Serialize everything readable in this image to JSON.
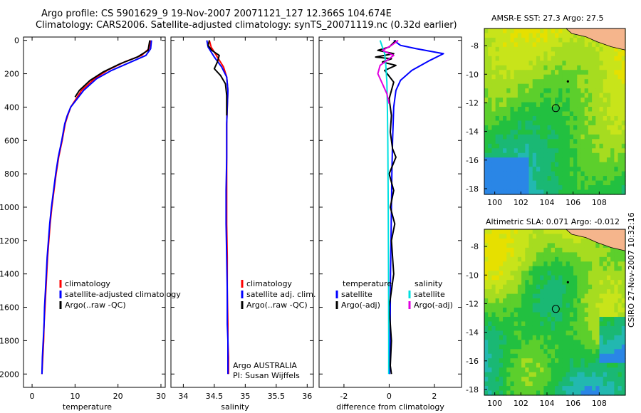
{
  "title": {
    "line1": "Argo profile: CS 5901629_9 19-Nov-2007 20071121_127 12.366S 104.674E",
    "line2": "Climatology: CARS2006. Satellite-adjusted climatology: synTS_20071119.nc (0.32d earlier)"
  },
  "colors": {
    "climatology": "#ff0000",
    "satellite": "#0000ff",
    "argo": "#000000",
    "satellite_salinity": "#00e0e0",
    "argo_salinity": "#e000e0",
    "land": "#f5b58c"
  },
  "credit": "CSIRO 27-Nov-2007 10:32:16",
  "chart_data": [
    {
      "type": "line",
      "id": "temperature",
      "xlabel": "temperature",
      "ylabel": "",
      "xlim": [
        -2,
        31
      ],
      "ylim": [
        2080,
        -20
      ],
      "xticks": [
        0,
        10,
        20,
        30
      ],
      "yticks": [
        0,
        200,
        400,
        600,
        800,
        1000,
        1200,
        1400,
        1600,
        1800,
        2000
      ],
      "series": [
        {
          "name": "climatology",
          "color": "#ff0000",
          "x": [
            27.6,
            27.2,
            25.5,
            21.5,
            17.5,
            14.5,
            11.5,
            10.0,
            9.0,
            8.3,
            7.7,
            7.0,
            6.2,
            5.6,
            5.1,
            4.6,
            4.2,
            3.9,
            3.6,
            3.4,
            3.2,
            3.0,
            2.8,
            2.7,
            2.6,
            2.5,
            2.4,
            2.3
          ],
          "y": [
            0,
            50,
            90,
            130,
            180,
            230,
            300,
            360,
            400,
            450,
            500,
            600,
            700,
            800,
            900,
            1000,
            1100,
            1200,
            1300,
            1400,
            1500,
            1600,
            1700,
            1800,
            1850,
            1900,
            1950,
            2000
          ]
        },
        {
          "name": "satellite-adjusted climatology",
          "color": "#0000ff",
          "x": [
            27.8,
            27.6,
            26.5,
            23.0,
            18.5,
            15.0,
            12.0,
            10.2,
            9.0,
            8.2,
            7.6,
            6.9,
            6.1,
            5.5,
            5.0,
            4.5,
            4.1,
            3.8,
            3.5,
            3.3,
            3.1,
            2.9,
            2.8,
            2.6,
            2.5,
            2.4,
            2.35,
            2.3
          ],
          "y": [
            0,
            50,
            90,
            130,
            180,
            230,
            300,
            360,
            400,
            450,
            500,
            600,
            700,
            800,
            900,
            1000,
            1100,
            1200,
            1300,
            1400,
            1500,
            1600,
            1700,
            1800,
            1850,
            1900,
            1950,
            2000
          ]
        },
        {
          "name": "Argo(..raw -QC)",
          "color": "#000000",
          "x": [
            27.4,
            27.0,
            24.5,
            20.5,
            16.5,
            13.5,
            11.0,
            10.0
          ],
          "y": [
            0,
            60,
            100,
            140,
            190,
            240,
            300,
            340
          ]
        }
      ],
      "legend": [
        "climatology",
        "satellite-adjusted climatology",
        "Argo(..raw -QC)"
      ]
    },
    {
      "type": "line",
      "id": "salinity",
      "xlabel": "salinity",
      "ylabel": "",
      "xlim": [
        33.8,
        36.1
      ],
      "ylim": [
        2080,
        -20
      ],
      "xticks": [
        34,
        34.5,
        35,
        35.5,
        36
      ],
      "series": [
        {
          "name": "climatology",
          "color": "#ff0000",
          "x": [
            34.42,
            34.45,
            34.55,
            34.65,
            34.7,
            34.72,
            34.71,
            34.7,
            34.7,
            34.7,
            34.7,
            34.71,
            34.71,
            34.72,
            34.72,
            34.73,
            34.73
          ],
          "y": [
            0,
            40,
            100,
            160,
            220,
            300,
            400,
            500,
            700,
            900,
            1100,
            1300,
            1500,
            1700,
            1800,
            1900,
            2000
          ]
        },
        {
          "name": "satellite adj. clim.",
          "color": "#0000ff",
          "x": [
            34.38,
            34.4,
            34.5,
            34.62,
            34.7,
            34.72,
            34.71,
            34.7,
            34.7,
            34.69,
            34.69,
            34.7,
            34.71,
            34.71,
            34.72,
            34.72,
            34.72
          ],
          "y": [
            0,
            40,
            100,
            160,
            220,
            300,
            400,
            500,
            700,
            900,
            1100,
            1300,
            1500,
            1700,
            1800,
            1900,
            2000
          ]
        },
        {
          "name": "Argo(..raw -QC)",
          "color": "#000000",
          "x": [
            34.42,
            34.4,
            34.46,
            34.58,
            34.55,
            34.5,
            34.6,
            34.68,
            34.7,
            34.7
          ],
          "y": [
            0,
            30,
            60,
            90,
            130,
            170,
            210,
            260,
            330,
            450
          ]
        }
      ],
      "legend": [
        "climatology",
        "satellite adj. clim.",
        "Argo(..raw -QC)"
      ],
      "annotation": [
        "Argo AUSTRALIA",
        "PI: Susan Wijffels"
      ]
    },
    {
      "type": "line",
      "id": "difference",
      "xlabel": "difference from climatology",
      "ylabel": "",
      "xlim": [
        -3.1,
        3.2
      ],
      "ylim": [
        2080,
        -20
      ],
      "xticks": [
        -2,
        0,
        2
      ],
      "series": [
        {
          "name": "temperature satellite",
          "color": "#0000ff",
          "x": [
            0.2,
            0.5,
            1.2,
            2.4,
            1.8,
            1.0,
            0.5,
            0.3,
            0.2,
            0.15,
            0.12,
            0.1,
            0.08,
            0.06,
            0.05,
            0.04,
            0.03,
            0.02
          ],
          "y": [
            0,
            30,
            50,
            80,
            120,
            180,
            240,
            300,
            400,
            600,
            800,
            1000,
            1200,
            1400,
            1600,
            1800,
            1900,
            2000
          ]
        },
        {
          "name": "temperature Argo(-adj)",
          "color": "#000000",
          "x": [
            0.3,
            0.0,
            -0.5,
            0.2,
            -0.6,
            0.1,
            -0.3,
            0.3,
            -0.2,
            0.2,
            0.0,
            0.1,
            0.05,
            0.15,
            0.3,
            0.0,
            0.2,
            0.05,
            0.25,
            0.1,
            0.2,
            0.0,
            0.1,
            0.05,
            0.1
          ],
          "y": [
            0,
            40,
            60,
            80,
            100,
            110,
            130,
            150,
            180,
            250,
            350,
            450,
            550,
            650,
            700,
            800,
            900,
            1000,
            1100,
            1200,
            1400,
            1600,
            1800,
            1950,
            2000
          ]
        },
        {
          "name": "salinity satellite",
          "color": "#00e0e0",
          "x": [
            -0.4,
            -0.3,
            -0.2,
            -0.15,
            -0.1,
            -0.08,
            -0.06,
            -0.05,
            -0.04,
            -0.03,
            -0.02,
            -0.02
          ],
          "y": [
            0,
            40,
            80,
            150,
            250,
            400,
            600,
            800,
            1000,
            1400,
            1800,
            2000
          ]
        },
        {
          "name": "salinity Argo(-adj)",
          "color": "#e000e0",
          "x": [
            0.4,
            0.1,
            -0.3,
            0.2,
            -0.4,
            -0.5,
            -0.3,
            -0.1,
            0.0
          ],
          "y": [
            0,
            30,
            60,
            90,
            150,
            200,
            260,
            320,
            380
          ]
        }
      ],
      "legend_headers": [
        "temperature",
        "salinity"
      ],
      "legend": {
        "temperature": [
          "satellite",
          "Argo(-adj)"
        ],
        "salinity": [
          "satellite",
          "Argo(-adj)"
        ]
      }
    },
    {
      "type": "heatmap",
      "id": "sst_map",
      "title": "AMSR-E SST: 27.3 Argo: 27.5",
      "xlim": [
        99.2,
        110.0
      ],
      "ylim": [
        -18.4,
        -6.8
      ],
      "xticks": [
        100,
        102,
        104,
        106,
        108
      ],
      "yticks": [
        -8,
        -10,
        -12,
        -14,
        -16,
        -18
      ],
      "float_position": {
        "lon": 104.674,
        "lat": -12.366
      },
      "marker": {
        "lon": 105.6,
        "lat": -10.5
      }
    },
    {
      "type": "heatmap",
      "id": "sla_map",
      "title": "Altimetric SLA: 0.071 Argo: -0.012",
      "xlim": [
        99.2,
        110.0
      ],
      "ylim": [
        -18.4,
        -6.8
      ],
      "xticks": [
        100,
        102,
        104,
        106,
        108
      ],
      "yticks": [
        -8,
        -10,
        -12,
        -14,
        -16,
        -18
      ],
      "float_position": {
        "lon": 104.674,
        "lat": -12.366
      },
      "marker": {
        "lon": 105.6,
        "lat": -10.5
      }
    }
  ]
}
